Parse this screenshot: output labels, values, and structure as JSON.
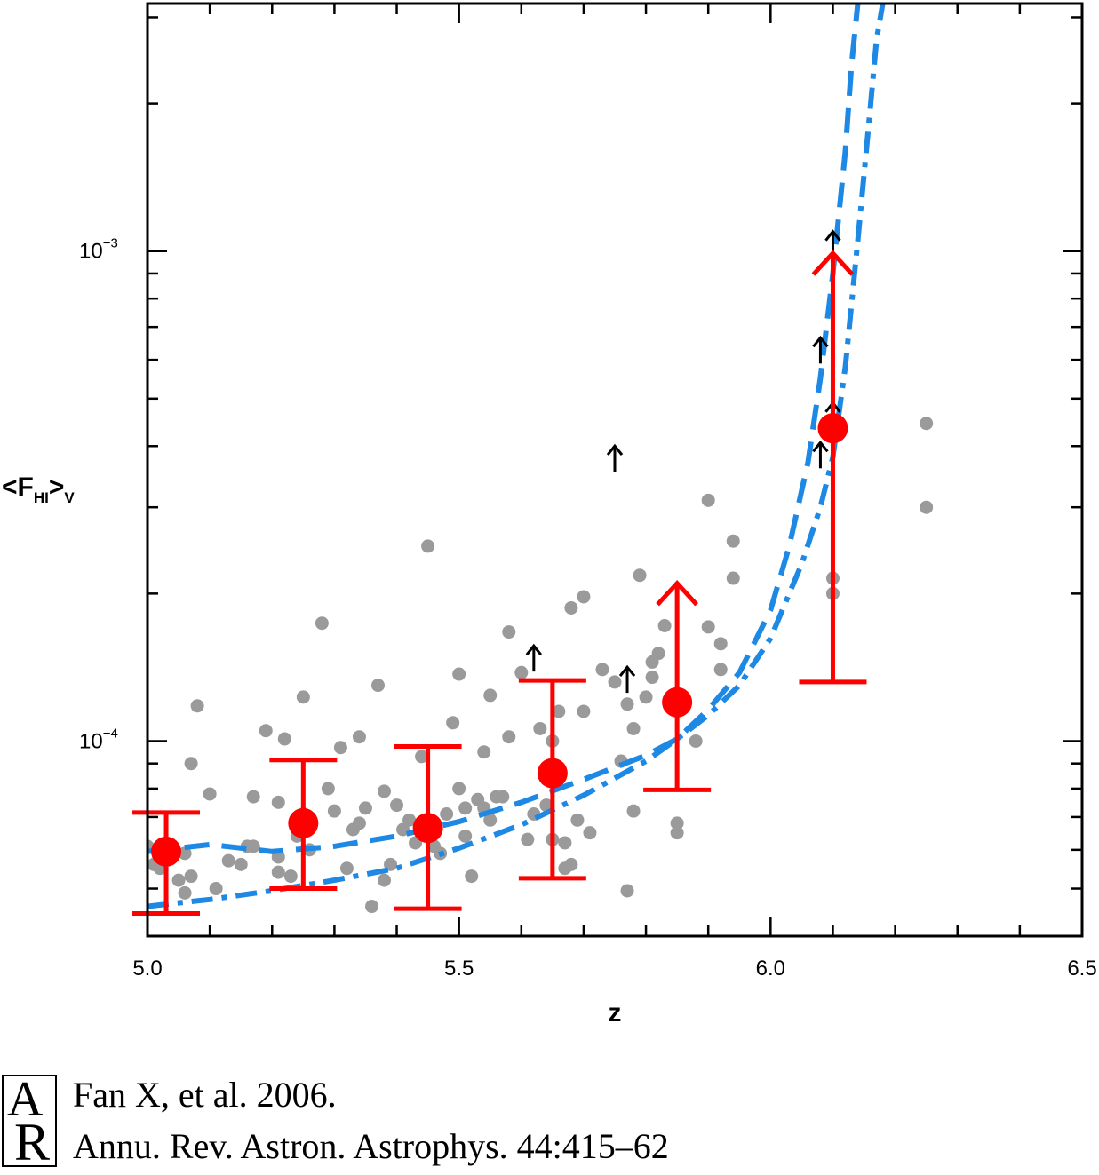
{
  "chart_data": {
    "type": "scatter",
    "xlabel": "z",
    "ylabel_main": "<F",
    "ylabel_sub": "HI",
    "ylabel_close": ">",
    "ylabel_sub2": "V",
    "xlim": [
      5.0,
      6.5
    ],
    "ylim": [
      4e-05,
      0.0032
    ],
    "yscale": "log",
    "x_ticks": [
      "5.0",
      "5.5",
      "6.0",
      "6.5"
    ],
    "y_ticks": [
      {
        "value": 0.0001,
        "base": "10",
        "exp": "−4"
      },
      {
        "value": 0.001,
        "base": "10",
        "exp": "−3"
      }
    ],
    "grid": false,
    "colors": {
      "individual_points": "#9a9a9a",
      "binned_mean": "#ff0000",
      "model_curves": "#1e88e5",
      "lower_limits": "#000000"
    },
    "individual_points": [
      {
        "x": 5.0,
        "y": 6.1e-05
      },
      {
        "x": 5.01,
        "y": 5.6e-05
      },
      {
        "x": 5.02,
        "y": 5.5e-05
      },
      {
        "x": 5.05,
        "y": 5.2e-05
      },
      {
        "x": 5.06,
        "y": 5.9e-05
      },
      {
        "x": 5.06,
        "y": 4.9e-05
      },
      {
        "x": 5.07,
        "y": 5.3e-05
      },
      {
        "x": 5.07,
        "y": 9e-05
      },
      {
        "x": 5.08,
        "y": 0.000118
      },
      {
        "x": 5.1,
        "y": 7.8e-05
      },
      {
        "x": 5.11,
        "y": 5e-05
      },
      {
        "x": 5.13,
        "y": 5.7e-05
      },
      {
        "x": 5.15,
        "y": 5.6e-05
      },
      {
        "x": 5.16,
        "y": 6.1e-05
      },
      {
        "x": 5.17,
        "y": 7.7e-05
      },
      {
        "x": 5.17,
        "y": 6.1e-05
      },
      {
        "x": 5.19,
        "y": 0.000105
      },
      {
        "x": 5.21,
        "y": 5.8e-05
      },
      {
        "x": 5.21,
        "y": 5.4e-05
      },
      {
        "x": 5.21,
        "y": 7.5e-05
      },
      {
        "x": 5.22,
        "y": 0.000101
      },
      {
        "x": 5.23,
        "y": 5.3e-05
      },
      {
        "x": 5.24,
        "y": 6.4e-05
      },
      {
        "x": 5.25,
        "y": 7.1e-05
      },
      {
        "x": 5.25,
        "y": 0.000123
      },
      {
        "x": 5.26,
        "y": 6e-05
      },
      {
        "x": 5.28,
        "y": 0.000174
      },
      {
        "x": 5.29,
        "y": 8e-05
      },
      {
        "x": 5.3,
        "y": 7.2e-05
      },
      {
        "x": 5.31,
        "y": 9.7e-05
      },
      {
        "x": 5.32,
        "y": 5.5e-05
      },
      {
        "x": 5.33,
        "y": 6.6e-05
      },
      {
        "x": 5.34,
        "y": 0.000102
      },
      {
        "x": 5.34,
        "y": 6.8e-05
      },
      {
        "x": 5.35,
        "y": 7.3e-05
      },
      {
        "x": 5.36,
        "y": 4.6e-05
      },
      {
        "x": 5.37,
        "y": 0.00013
      },
      {
        "x": 5.38,
        "y": 5.2e-05
      },
      {
        "x": 5.38,
        "y": 7.9e-05
      },
      {
        "x": 5.39,
        "y": 5.6e-05
      },
      {
        "x": 5.4,
        "y": 7.4e-05
      },
      {
        "x": 5.41,
        "y": 6.6e-05
      },
      {
        "x": 5.42,
        "y": 6.9e-05
      },
      {
        "x": 5.43,
        "y": 6.2e-05
      },
      {
        "x": 5.44,
        "y": 9.3e-05
      },
      {
        "x": 5.45,
        "y": 0.00025
      },
      {
        "x": 5.46,
        "y": 6.1e-05
      },
      {
        "x": 5.47,
        "y": 5.9e-05
      },
      {
        "x": 5.48,
        "y": 7.1e-05
      },
      {
        "x": 5.49,
        "y": 0.000109
      },
      {
        "x": 5.5,
        "y": 0.000137
      },
      {
        "x": 5.5,
        "y": 8e-05
      },
      {
        "x": 5.51,
        "y": 6.4e-05
      },
      {
        "x": 5.51,
        "y": 7.3e-05
      },
      {
        "x": 5.52,
        "y": 5.3e-05
      },
      {
        "x": 5.53,
        "y": 7.6e-05
      },
      {
        "x": 5.54,
        "y": 9.5e-05
      },
      {
        "x": 5.54,
        "y": 7.3e-05
      },
      {
        "x": 5.55,
        "y": 6.9e-05
      },
      {
        "x": 5.55,
        "y": 0.000124
      },
      {
        "x": 5.56,
        "y": 7.7e-05
      },
      {
        "x": 5.57,
        "y": 7.7e-05
      },
      {
        "x": 5.58,
        "y": 0.000102
      },
      {
        "x": 5.58,
        "y": 0.000167
      },
      {
        "x": 5.6,
        "y": 0.000138
      },
      {
        "x": 5.61,
        "y": 6.3e-05
      },
      {
        "x": 5.62,
        "y": 7.1e-05
      },
      {
        "x": 5.63,
        "y": 0.000106
      },
      {
        "x": 5.64,
        "y": 7.4e-05
      },
      {
        "x": 5.65,
        "y": 6.3e-05
      },
      {
        "x": 5.65,
        "y": 0.0001
      },
      {
        "x": 5.66,
        "y": 0.000115
      },
      {
        "x": 5.66,
        "y": 8.7e-05
      },
      {
        "x": 5.67,
        "y": 5.5e-05
      },
      {
        "x": 5.67,
        "y": 6.2e-05
      },
      {
        "x": 5.68,
        "y": 5.6e-05
      },
      {
        "x": 5.68,
        "y": 0.000187
      },
      {
        "x": 5.69,
        "y": 6.9e-05
      },
      {
        "x": 5.7,
        "y": 0.000197
      },
      {
        "x": 5.7,
        "y": 0.000115
      },
      {
        "x": 5.71,
        "y": 6.5e-05
      },
      {
        "x": 5.73,
        "y": 0.00014
      },
      {
        "x": 5.75,
        "y": 0.000132
      },
      {
        "x": 5.76,
        "y": 9.1e-05
      },
      {
        "x": 5.77,
        "y": 0.000119
      },
      {
        "x": 5.77,
        "y": 4.95e-05
      },
      {
        "x": 5.78,
        "y": 7.2e-05
      },
      {
        "x": 5.78,
        "y": 0.000106
      },
      {
        "x": 5.79,
        "y": 0.000218
      },
      {
        "x": 5.8,
        "y": 0.000123
      },
      {
        "x": 5.81,
        "y": 0.000145
      },
      {
        "x": 5.81,
        "y": 0.000135
      },
      {
        "x": 5.82,
        "y": 0.000151
      },
      {
        "x": 5.83,
        "y": 0.000172
      },
      {
        "x": 5.84,
        "y": 0.000122
      },
      {
        "x": 5.85,
        "y": 6.8e-05
      },
      {
        "x": 5.85,
        "y": 6.5e-05
      },
      {
        "x": 5.88,
        "y": 0.0001
      },
      {
        "x": 5.9,
        "y": 0.000171
      },
      {
        "x": 5.9,
        "y": 0.00031
      },
      {
        "x": 5.92,
        "y": 0.000158
      },
      {
        "x": 5.92,
        "y": 0.00014
      },
      {
        "x": 5.94,
        "y": 0.000256
      },
      {
        "x": 5.94,
        "y": 0.000215
      },
      {
        "x": 6.1,
        "y": 0.000215
      },
      {
        "x": 6.1,
        "y": 0.0002
      },
      {
        "x": 6.25,
        "y": 0.000445
      },
      {
        "x": 6.25,
        "y": 0.0003
      }
    ],
    "binned_means": [
      {
        "x": 5.03,
        "y": 5.95e-05,
        "err_low": 4.45e-05,
        "err_high": 7.15e-05,
        "lower_limit": false
      },
      {
        "x": 5.25,
        "y": 6.8e-05,
        "err_low": 5e-05,
        "err_high": 9.15e-05,
        "lower_limit": false
      },
      {
        "x": 5.45,
        "y": 6.65e-05,
        "err_low": 4.55e-05,
        "err_high": 9.75e-05,
        "lower_limit": false
      },
      {
        "x": 5.65,
        "y": 8.6e-05,
        "err_low": 5.25e-05,
        "err_high": 0.000133,
        "lower_limit": false
      },
      {
        "x": 5.85,
        "y": 0.00012,
        "err_low": 7.95e-05,
        "err_high": 0.00021,
        "lower_limit": true
      },
      {
        "x": 6.1,
        "y": 0.000435,
        "err_low": 0.000132,
        "err_high": 0.00099,
        "lower_limit": true
      }
    ],
    "lower_limit_arrows": [
      {
        "x": 5.62,
        "y": 0.000147
      },
      {
        "x": 5.75,
        "y": 0.000376
      },
      {
        "x": 5.77,
        "y": 0.000133
      },
      {
        "x": 6.08,
        "y": 0.000382
      },
      {
        "x": 6.08,
        "y": 0.000625
      },
      {
        "x": 6.1,
        "y": 0.00103
      },
      {
        "x": 6.1,
        "y": 0.00046
      }
    ],
    "model_curves": [
      {
        "style": "dashed",
        "points": [
          [
            5.0,
            5.95e-05
          ],
          [
            5.1,
            6.15e-05
          ],
          [
            5.2,
            5.95e-05
          ],
          [
            5.3,
            6.1e-05
          ],
          [
            5.4,
            6.4e-05
          ],
          [
            5.5,
            6.85e-05
          ],
          [
            5.6,
            7.5e-05
          ],
          [
            5.7,
            8.35e-05
          ],
          [
            5.8,
            9.35e-05
          ],
          [
            5.85,
            0.000101
          ],
          [
            5.9,
            0.000116
          ],
          [
            5.95,
            0.000138
          ],
          [
            6.0,
            0.000185
          ],
          [
            6.03,
            0.00025
          ],
          [
            6.06,
            0.00037
          ],
          [
            6.08,
            0.00055
          ],
          [
            6.1,
            0.0009
          ],
          [
            6.12,
            0.0016
          ],
          [
            6.13,
            0.0024
          ],
          [
            6.14,
            0.0032
          ]
        ]
      },
      {
        "style": "dash-dot",
        "points": [
          [
            5.0,
            4.6e-05
          ],
          [
            5.1,
            4.75e-05
          ],
          [
            5.2,
            4.95e-05
          ],
          [
            5.3,
            5.2e-05
          ],
          [
            5.4,
            5.5e-05
          ],
          [
            5.5,
            6.05e-05
          ],
          [
            5.6,
            6.75e-05
          ],
          [
            5.7,
            7.75e-05
          ],
          [
            5.8,
            9.1e-05
          ],
          [
            5.85,
            0.000101
          ],
          [
            5.9,
            0.000113
          ],
          [
            5.95,
            0.00013
          ],
          [
            6.0,
            0.000162
          ],
          [
            6.05,
            0.00023
          ],
          [
            6.08,
            0.0003
          ],
          [
            6.1,
            0.00038
          ],
          [
            6.12,
            0.00058
          ],
          [
            6.14,
            0.00105
          ],
          [
            6.16,
            0.00195
          ],
          [
            6.17,
            0.0027
          ],
          [
            6.18,
            0.0032
          ]
        ]
      }
    ]
  },
  "citation": {
    "line1": "Fan X, et al. 2006.",
    "line2": "Annu. Rev. Astron. Astrophys. 44:415–62",
    "logo_text": "AR"
  }
}
